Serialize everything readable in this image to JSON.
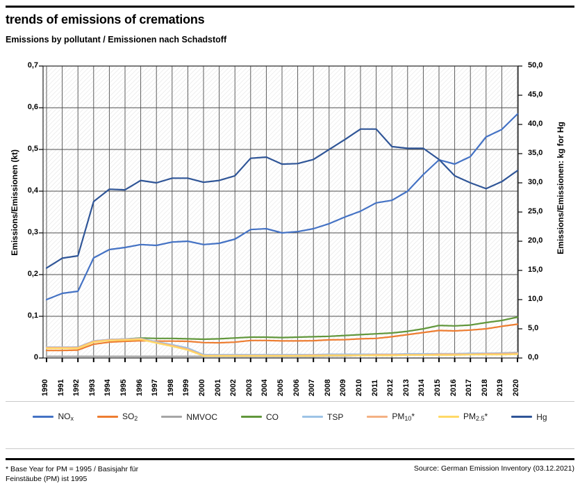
{
  "header": {
    "title": "trends of emissions of cremations",
    "subtitle": "Emissions by pollutant / Emissionen nach Schadstoff"
  },
  "chart_data": {
    "type": "line",
    "x": [
      1990,
      1991,
      1992,
      1993,
      1994,
      1995,
      1996,
      1997,
      1998,
      1999,
      2000,
      2001,
      2002,
      2003,
      2004,
      2005,
      2006,
      2007,
      2008,
      2009,
      2010,
      2011,
      2012,
      2013,
      2014,
      2015,
      2016,
      2017,
      2018,
      2019,
      2020
    ],
    "left_axis": {
      "title": "Emissions/Emissionen (kt)",
      "min": 0,
      "max": 0.7,
      "tick_labels": [
        "0,7",
        "0,6",
        "0,5",
        "0,4",
        "0,3",
        "0,2",
        "0,1",
        "0"
      ]
    },
    "right_axis": {
      "title": "Emissions/Emissionen: kg for Hg",
      "min": 0,
      "max": 50,
      "tick_labels": [
        "50,0",
        "45,0",
        "40,0",
        "35,0",
        "30,0",
        "25,0",
        "20,0",
        "15,0",
        "10,0",
        "5,0",
        "0,0"
      ]
    },
    "grid": true,
    "legend_position": "bottom",
    "series": [
      {
        "name": "NOx",
        "label_pre": "NO",
        "label_sub": "x",
        "label_post": "",
        "color": "#4472C4",
        "axis": "left",
        "values": [
          0.14,
          0.155,
          0.16,
          0.24,
          0.26,
          0.265,
          0.272,
          0.27,
          0.278,
          0.28,
          0.272,
          0.275,
          0.285,
          0.308,
          0.31,
          0.3,
          0.303,
          0.31,
          0.322,
          0.338,
          0.352,
          0.372,
          0.378,
          0.4,
          0.44,
          0.475,
          0.465,
          0.483,
          0.53,
          0.548,
          0.585
        ]
      },
      {
        "name": "SO2",
        "label_pre": "SO",
        "label_sub": "2",
        "label_post": "",
        "color": "#ED7D31",
        "axis": "left",
        "values": [
          0.018,
          0.018,
          0.019,
          0.033,
          0.038,
          0.04,
          0.0415,
          0.0405,
          0.0405,
          0.04,
          0.037,
          0.0365,
          0.038,
          0.042,
          0.042,
          0.041,
          0.041,
          0.0415,
          0.0435,
          0.044,
          0.046,
          0.047,
          0.051,
          0.056,
          0.061,
          0.066,
          0.065,
          0.067,
          0.07,
          0.076,
          0.081
        ]
      },
      {
        "name": "NMVOC",
        "label_pre": "NMVOC",
        "label_sub": "",
        "label_post": "",
        "color": "#A6A6A6",
        "axis": "left",
        "values": [
          0.004,
          0.004,
          0.004,
          0.004,
          0.004,
          0.004,
          0.004,
          0.004,
          0.004,
          0.004,
          0.004,
          0.004,
          0.004,
          0.004,
          0.004,
          0.004,
          0.004,
          0.004,
          0.005,
          0.005,
          0.006,
          0.006,
          0.007,
          0.008,
          0.009,
          0.01,
          0.01,
          0.011,
          0.011,
          0.012,
          0.013
        ]
      },
      {
        "name": "CO",
        "label_pre": "CO",
        "label_sub": "",
        "label_post": "",
        "color": "#61973B",
        "axis": "left",
        "values": [
          0.025,
          0.025,
          0.026,
          0.04,
          0.044,
          0.0455,
          0.048,
          0.047,
          0.047,
          0.046,
          0.045,
          0.046,
          0.048,
          0.05,
          0.05,
          0.049,
          0.05,
          0.051,
          0.052,
          0.054,
          0.056,
          0.058,
          0.06,
          0.064,
          0.07,
          0.078,
          0.077,
          0.079,
          0.085,
          0.09,
          0.098
        ]
      },
      {
        "name": "TSP",
        "label_pre": "TSP",
        "label_sub": "",
        "label_post": "",
        "color": "#9DC3E6",
        "axis": "left",
        "values": [
          0.026,
          0.026,
          0.026,
          0.041,
          0.0445,
          0.0455,
          0.047,
          0.039,
          0.032,
          0.024,
          0.008,
          0.008,
          0.008,
          0.008,
          0.008,
          0.008,
          0.008,
          0.008,
          0.009,
          0.009,
          0.009,
          0.009,
          0.009,
          0.01,
          0.01,
          0.01,
          0.01,
          0.011,
          0.011,
          0.011,
          0.012
        ]
      },
      {
        "name": "PM10*",
        "label_pre": "PM",
        "label_sub": "10",
        "label_post": "*",
        "color": "#F4B183",
        "axis": "left",
        "values": [
          0.025,
          0.025,
          0.025,
          0.04,
          0.0435,
          0.0445,
          0.046,
          0.037,
          0.03,
          0.021,
          0.006,
          0.006,
          0.006,
          0.006,
          0.006,
          0.006,
          0.006,
          0.007,
          0.007,
          0.007,
          0.007,
          0.008,
          0.008,
          0.008,
          0.008,
          0.009,
          0.009,
          0.009,
          0.01,
          0.01,
          0.011
        ]
      },
      {
        "name": "PM2.5*",
        "label_pre": "PM",
        "label_sub": "2.5",
        "label_post": "*",
        "color": "#FFD966",
        "axis": "left",
        "values": [
          0.023,
          0.023,
          0.023,
          0.038,
          0.042,
          0.043,
          0.0445,
          0.036,
          0.028,
          0.019,
          0.005,
          0.005,
          0.005,
          0.005,
          0.005,
          0.005,
          0.005,
          0.005,
          0.006,
          0.006,
          0.006,
          0.006,
          0.006,
          0.007,
          0.007,
          0.007,
          0.007,
          0.008,
          0.008,
          0.008,
          0.009
        ]
      },
      {
        "name": "Hg",
        "label_pre": "Hg",
        "label_sub": "",
        "label_post": "",
        "color": "#2F5597",
        "axis": "right",
        "values": [
          15.4,
          17.1,
          17.5,
          26.8,
          28.9,
          28.8,
          30.4,
          30.0,
          30.8,
          30.8,
          30.1,
          30.4,
          31.2,
          34.2,
          34.4,
          33.2,
          33.3,
          34.0,
          35.7,
          37.4,
          39.2,
          39.2,
          36.2,
          35.9,
          35.9,
          34.0,
          31.2,
          30.0,
          29.0,
          30.2,
          32.1
        ]
      }
    ]
  },
  "footer": {
    "note_line1": "* Base Year for PM = 1995 / Basisjahr für",
    "note_line2": "Feinstäube (PM) ist 1995",
    "source": "Source: German Emission Inventory (03.12.2021)"
  }
}
